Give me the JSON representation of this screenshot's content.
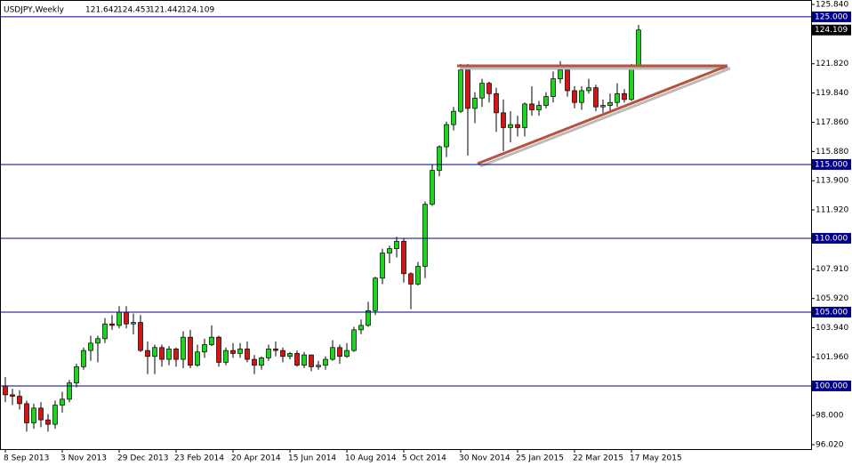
{
  "chart_data": {
    "type": "candlestick",
    "title": "USDJPY,Weekly",
    "categories": [
      "8 Sep 2013",
      null,
      null,
      null,
      null,
      null,
      null,
      null,
      "3 Nov 2013",
      null,
      null,
      null,
      null,
      null,
      null,
      null,
      "29 Dec 2013",
      null,
      null,
      null,
      null,
      null,
      null,
      null,
      "23 Feb 2014",
      null,
      null,
      null,
      null,
      null,
      null,
      null,
      "20 Apr 2014",
      null,
      null,
      null,
      null,
      null,
      null,
      null,
      "15 Jun 2014",
      null,
      null,
      null,
      null,
      null,
      null,
      null,
      "10 Aug 2014",
      null,
      null,
      null,
      null,
      null,
      null,
      null,
      "5 Oct 2014",
      null,
      null,
      null,
      null,
      null,
      null,
      null,
      "30 Nov 2014",
      null,
      null,
      null,
      null,
      null,
      null,
      null,
      "25 Jan 2015",
      null,
      null,
      null,
      null,
      null,
      null,
      null,
      "22 Mar 2015",
      null,
      null,
      null,
      null,
      null,
      null,
      null,
      "17 May 2015",
      null
    ],
    "ohlc": {
      "open": [
        100.0,
        99.4,
        99.3,
        98.8,
        97.5,
        98.5,
        97.7,
        97.4,
        98.7,
        99.1,
        100.2,
        101.3,
        102.4,
        102.9,
        103.2,
        104.2,
        104.1,
        105.0,
        104.2,
        104.3,
        102.4,
        102.0,
        102.6,
        101.8,
        102.5,
        101.8,
        103.3,
        101.4,
        102.3,
        102.8,
        103.3,
        101.6,
        102.4,
        102.2,
        102.5,
        101.8,
        101.4,
        101.9,
        102.5,
        102.4,
        102.0,
        102.2,
        101.4,
        102.1,
        101.3,
        101.4,
        101.8,
        102.6,
        102.0,
        102.4,
        103.8,
        104.1,
        105.1,
        107.3,
        109.0,
        109.3,
        109.8,
        107.6,
        106.9,
        108.1,
        112.3,
        114.6,
        116.2,
        117.7,
        118.6,
        121.4,
        118.8,
        119.5,
        120.5,
        119.8,
        118.5,
        117.5,
        117.7,
        117.5,
        119.1,
        118.7,
        119.0,
        119.6,
        120.8,
        121.4,
        120.0,
        119.2,
        120.0,
        120.2,
        118.9,
        119.0,
        119.2,
        119.8,
        119.4,
        121.642
      ],
      "high": [
        100.6,
        99.8,
        99.7,
        99.0,
        98.8,
        98.9,
        98.1,
        99.0,
        99.6,
        100.4,
        101.5,
        102.6,
        103.4,
        103.4,
        104.6,
        104.8,
        105.4,
        105.4,
        104.9,
        104.8,
        103.0,
        102.8,
        102.8,
        102.7,
        102.6,
        103.7,
        103.8,
        102.8,
        103.2,
        104.1,
        103.4,
        102.6,
        102.9,
        102.9,
        103.0,
        102.1,
        102.0,
        102.8,
        103.0,
        102.6,
        102.3,
        102.4,
        102.3,
        102.1,
        101.7,
        102.0,
        103.1,
        102.8,
        102.9,
        104.0,
        104.5,
        105.7,
        107.4,
        109.3,
        109.5,
        110.1,
        110.0,
        107.7,
        108.4,
        112.5,
        115.0,
        116.3,
        117.9,
        118.9,
        121.8,
        121.8,
        119.9,
        120.8,
        120.6,
        120.2,
        119.4,
        118.6,
        118.3,
        119.2,
        120.3,
        119.3,
        119.9,
        121.3,
        122.0,
        121.5,
        120.3,
        120.3,
        120.8,
        120.4,
        119.4,
        119.8,
        120.5,
        120.1,
        121.8,
        124.453
      ],
      "low": [
        98.9,
        98.7,
        98.4,
        96.9,
        97.1,
        97.2,
        96.9,
        97.1,
        98.2,
        98.9,
        99.9,
        101.1,
        101.7,
        101.6,
        102.9,
        103.8,
        103.9,
        103.9,
        103.5,
        102.3,
        100.8,
        100.8,
        101.3,
        101.4,
        101.3,
        101.2,
        101.2,
        101.3,
        101.9,
        102.7,
        101.3,
        101.4,
        101.9,
        101.9,
        101.6,
        100.8,
        101.1,
        101.7,
        102.0,
        101.6,
        101.8,
        101.3,
        101.2,
        101.0,
        101.1,
        101.1,
        101.7,
        101.5,
        101.9,
        102.3,
        103.5,
        104.0,
        104.8,
        106.9,
        108.3,
        108.7,
        107.0,
        105.2,
        106.8,
        107.3,
        112.2,
        114.2,
        115.5,
        117.3,
        118.5,
        115.6,
        117.8,
        118.9,
        119.2,
        117.2,
        115.9,
        116.5,
        116.9,
        116.9,
        118.3,
        118.3,
        118.8,
        119.2,
        120.5,
        119.6,
        118.8,
        118.7,
        119.8,
        118.6,
        118.5,
        118.5,
        118.9,
        119.2,
        119.3,
        121.442
      ],
      "close": [
        99.4,
        99.3,
        98.8,
        97.5,
        98.5,
        97.7,
        97.4,
        98.7,
        99.1,
        100.2,
        101.3,
        102.4,
        102.9,
        103.2,
        104.2,
        104.1,
        105.0,
        104.2,
        104.3,
        102.4,
        102.0,
        102.6,
        101.8,
        102.5,
        101.8,
        103.3,
        101.4,
        102.3,
        102.8,
        103.3,
        101.6,
        102.4,
        102.2,
        102.5,
        101.8,
        101.4,
        101.9,
        102.5,
        102.4,
        102.0,
        102.2,
        101.4,
        102.1,
        101.3,
        101.4,
        101.8,
        102.6,
        102.0,
        102.4,
        103.8,
        104.1,
        105.1,
        107.3,
        109.0,
        109.3,
        109.8,
        107.6,
        106.9,
        108.1,
        112.3,
        114.6,
        116.2,
        117.7,
        118.6,
        121.4,
        118.8,
        119.5,
        120.5,
        119.8,
        118.5,
        117.5,
        117.7,
        117.5,
        119.1,
        118.7,
        119.0,
        119.6,
        120.8,
        121.4,
        120.0,
        119.2,
        120.0,
        120.2,
        118.9,
        119.0,
        119.2,
        119.8,
        119.4,
        121.5,
        124.109
      ]
    },
    "up_color": "#1ed41e",
    "down_color": "#d41515",
    "ylim": [
      95.72,
      125.96
    ],
    "yticks": [
      {
        "value": 125.84,
        "label": "125.840"
      },
      {
        "value": 121.82,
        "label": "121.820"
      },
      {
        "value": 119.84,
        "label": "119.840"
      },
      {
        "value": 117.86,
        "label": "117.860"
      },
      {
        "value": 115.88,
        "label": "115.880"
      },
      {
        "value": 113.9,
        "label": "113.900"
      },
      {
        "value": 111.92,
        "label": "111.920"
      },
      {
        "value": 107.91,
        "label": "107.910"
      },
      {
        "value": 105.92,
        "label": "105.920"
      },
      {
        "value": 103.94,
        "label": "103.940"
      },
      {
        "value": 101.96,
        "label": "101.960"
      },
      {
        "value": 98.0,
        "label": "98.000"
      },
      {
        "value": 96.02,
        "label": "96.020"
      }
    ],
    "levels": [
      {
        "value": 125,
        "label": "125.000"
      },
      {
        "value": 115,
        "label": "115.000"
      },
      {
        "value": 110,
        "label": "110.000"
      },
      {
        "value": 105,
        "label": "105.000"
      },
      {
        "value": 100,
        "label": "100.000"
      }
    ],
    "level_color": "#00008b"
  }
}
